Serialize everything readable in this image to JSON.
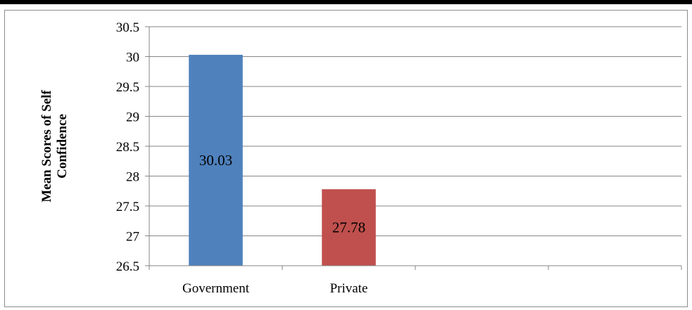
{
  "chart_data": {
    "type": "bar",
    "title": "",
    "xlabel": "",
    "ylabel_lines": [
      "Mean Scores of Self",
      "Confidence"
    ],
    "ylim": [
      26.5,
      30.5
    ],
    "yticks": [
      "26.5",
      "27",
      "27.5",
      "28",
      "28.5",
      "29",
      "29.5",
      "30",
      "30.5"
    ],
    "ytick_values": [
      26.5,
      27,
      27.5,
      28,
      28.5,
      29,
      29.5,
      30,
      30.5
    ],
    "categories": [
      "Government",
      "Private",
      "",
      ""
    ],
    "values": [
      30.03,
      27.78,
      null,
      null
    ],
    "data_labels": [
      "30.03",
      "27.78",
      "",
      ""
    ],
    "bar_colors": [
      "#4f81bd",
      "#c0504d"
    ],
    "grid": true,
    "legend": "none"
  },
  "colors": {
    "gridline": "#868686",
    "axis": "#868686"
  }
}
